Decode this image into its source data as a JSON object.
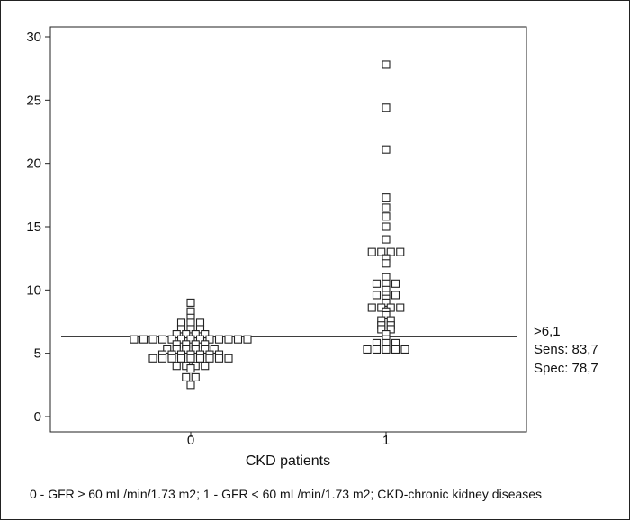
{
  "chart_data": {
    "type": "scatter",
    "style": "dot plot",
    "xlabel": "CKD patients",
    "categories": [
      "0",
      "1"
    ],
    "ylim": [
      0,
      30
    ],
    "yticks": [
      0,
      5,
      10,
      15,
      20,
      25,
      30
    ],
    "grid": false,
    "marker": "open square",
    "series": [
      {
        "category": "0",
        "values": [
          9.0,
          8.3,
          7.8,
          7.4,
          7.4,
          7.4,
          6.9,
          6.9,
          6.9,
          6.5,
          6.5,
          6.5,
          6.5,
          6.1,
          6.1,
          6.1,
          6.1,
          6.1,
          6.1,
          6.1,
          6.1,
          6.1,
          6.1,
          6.1,
          6.1,
          6.1,
          5.7,
          5.7,
          5.7,
          5.7,
          5.3,
          5.3,
          5.3,
          5.3,
          5.3,
          5.3,
          4.9,
          4.9,
          4.9,
          4.9,
          4.9,
          4.9,
          4.9,
          4.6,
          4.6,
          4.6,
          4.6,
          4.6,
          4.6,
          4.6,
          4.6,
          4.6,
          4.0,
          4.0,
          4.0,
          4.0,
          3.8,
          3.1,
          3.1,
          2.5
        ]
      },
      {
        "category": "1",
        "values": [
          27.8,
          24.4,
          21.1,
          17.3,
          16.5,
          15.8,
          15.0,
          14.0,
          13.0,
          13.0,
          13.0,
          13.0,
          12.5,
          12.1,
          11.0,
          10.5,
          10.5,
          10.5,
          10.0,
          9.6,
          9.6,
          9.6,
          9.3,
          9.0,
          8.6,
          8.6,
          8.6,
          8.6,
          8.3,
          8.0,
          7.6,
          7.6,
          7.2,
          7.2,
          6.9,
          6.9,
          6.5,
          6.1,
          5.8,
          5.8,
          5.8,
          5.3,
          5.3,
          5.3,
          5.3,
          5.3
        ]
      }
    ],
    "reference_line": {
      "y": 6.3
    },
    "annotations": [
      ">6,1",
      "Sens: 83,7",
      "Spec: 78,7"
    ],
    "footnote": "0 - GFR ≥ 60 mL/min/1.73 m2; 1 - GFR < 60 mL/min/1.73 m2; CKD-chronic kidney diseases"
  }
}
